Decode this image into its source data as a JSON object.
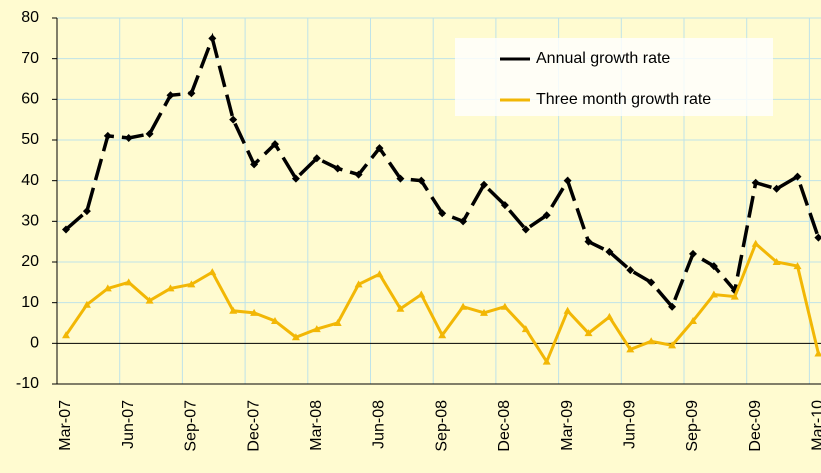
{
  "chart_data": {
    "type": "line",
    "categories": [
      "Mar-07",
      null,
      null,
      "Jun-07",
      null,
      null,
      "Sep-07",
      null,
      null,
      "Dec-07",
      null,
      null,
      "Mar-08",
      null,
      null,
      "Jun-08",
      null,
      null,
      "Sep-08",
      null,
      null,
      "Dec-08",
      null,
      null,
      "Mar-09",
      null,
      null,
      "Jun-09",
      null,
      null,
      "Sep-09",
      null,
      null,
      "Dec-09",
      null,
      null,
      "Mar-10"
    ],
    "series": [
      {
        "name": "Annual growth rate",
        "color": "#000000",
        "values": [
          28,
          32.5,
          51,
          50.5,
          51.5,
          61,
          61.5,
          75,
          55,
          44,
          49,
          40.5,
          45.5,
          43,
          41.5,
          48,
          40.5,
          40,
          32,
          30,
          39,
          34,
          28,
          31.5,
          40,
          25,
          22.5,
          18,
          15,
          9,
          22,
          19,
          13,
          39.5,
          38,
          41,
          26
        ]
      },
      {
        "name": "Three month growth rate",
        "color": "#f2b705",
        "values": [
          2,
          9.5,
          13.5,
          15,
          10.5,
          13.5,
          14.5,
          17.5,
          8,
          7.5,
          5.5,
          1.5,
          3.5,
          5,
          14.5,
          17,
          8.5,
          12,
          2,
          9,
          7.5,
          9,
          3.5,
          -4.5,
          8,
          2.5,
          6.5,
          -1.5,
          0.5,
          -0.5,
          5.5,
          12,
          11.5,
          24.5,
          20,
          19,
          -2.5
        ]
      }
    ],
    "ylim": [
      -10,
      80
    ],
    "yticks": [
      -10,
      0,
      10,
      20,
      30,
      40,
      50,
      60,
      70,
      80
    ],
    "grid": true,
    "legend": "upper right"
  }
}
